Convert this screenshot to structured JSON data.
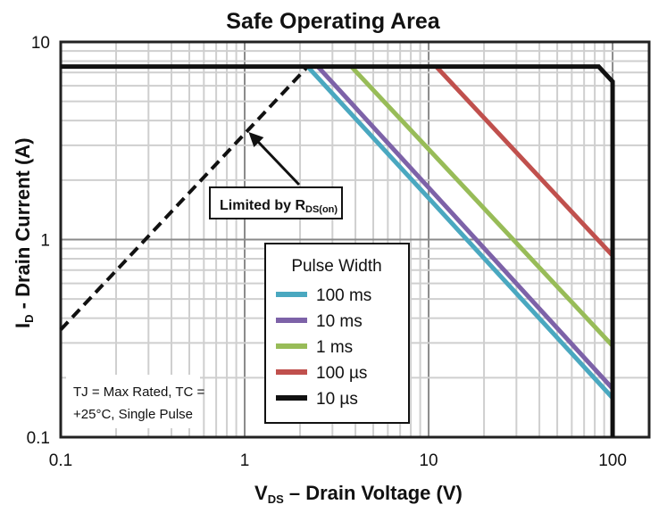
{
  "chart_data": {
    "type": "line",
    "title": "Safe Operating Area",
    "xlabel_main": "V",
    "xlabel_sub": "DS",
    "xlabel_rest": "  – Drain Voltage (V)",
    "ylabel_main": "I",
    "ylabel_sub": "D",
    "ylabel_rest": " - Drain Current (A)",
    "xscale": "log",
    "yscale": "log",
    "xlim": [
      0.1,
      158
    ],
    "ylim": [
      0.1,
      10
    ],
    "xticks": [
      {
        "v": 0.1,
        "label": "0.1"
      },
      {
        "v": 1,
        "label": "1"
      },
      {
        "v": 10,
        "label": "10"
      },
      {
        "v": 100,
        "label": "100"
      }
    ],
    "yticks": [
      {
        "v": 0.1,
        "label": "0.1"
      },
      {
        "v": 1,
        "label": "1"
      },
      {
        "v": 10,
        "label": "10"
      }
    ],
    "grid": true,
    "legend": {
      "title": "Pulse Width",
      "placement": "center-right"
    },
    "series": [
      {
        "name": "100 ms",
        "color": "#4aa8c0",
        "x": [
          2.2,
          100
        ],
        "y": [
          7.5,
          0.158
        ]
      },
      {
        "name": "10 ms",
        "color": "#7d62a8",
        "x": [
          2.5,
          100
        ],
        "y": [
          7.5,
          0.176
        ]
      },
      {
        "name": "1 ms",
        "color": "#98bc58",
        "x": [
          3.8,
          100
        ],
        "y": [
          7.5,
          0.29
        ]
      },
      {
        "name": "100 µs",
        "color": "#c0504d",
        "x": [
          11,
          100
        ],
        "y": [
          7.5,
          0.83
        ]
      },
      {
        "name": "10 µs",
        "color": "#111111",
        "x": [
          0.1,
          84,
          100,
          100
        ],
        "y": [
          7.5,
          7.5,
          6.3,
          0.1
        ]
      }
    ],
    "rds_limit": {
      "x": [
        0.1,
        2.2
      ],
      "y": [
        0.35,
        7.5
      ],
      "style": "dashed"
    },
    "annotation": {
      "text": "Limited by R",
      "sub": "DS(on)",
      "arrow_to": {
        "x": 1.05,
        "y": 3.5
      }
    },
    "note": {
      "line1": "TJ = Max Rated, TC =",
      "line2": "+25°C, Single Pulse"
    }
  }
}
